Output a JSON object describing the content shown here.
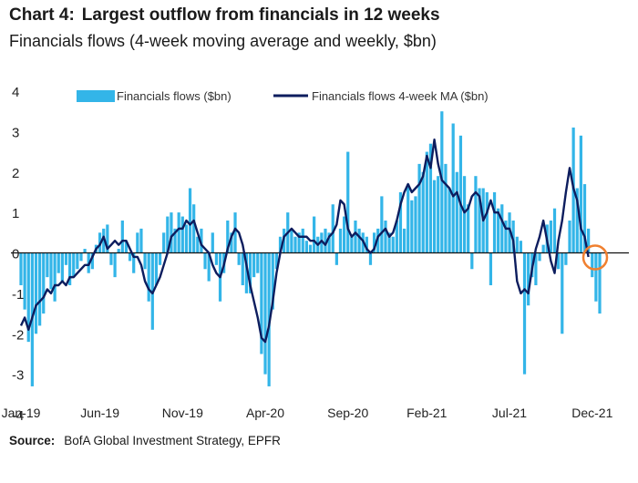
{
  "header": {
    "chart_number": "Chart 4:",
    "title": "Largest outflow from financials in 12 weeks",
    "subtitle": "Financials flows (4-week moving average and weekly, $bn)"
  },
  "source": {
    "label": "Source:",
    "text": "BofA Global Investment Strategy, EPFR"
  },
  "colors": {
    "bars": "#33b5e8",
    "line": "#0d1d5e",
    "highlight": "#f08030"
  },
  "chart_data": {
    "type": "bar",
    "combined_with": "line",
    "title": "Financials flows (4-week moving average and weekly, $bn)",
    "ylim": [
      -4,
      4
    ],
    "yticks": [
      -4,
      -3,
      -2,
      -1,
      0,
      1,
      2,
      3,
      4
    ],
    "ytick_labels": [
      "-4",
      "-3",
      "-2",
      "-1",
      "0",
      "1",
      "2",
      "3",
      "4"
    ],
    "xticks": [
      "Jan-19",
      "Jun-19",
      "Nov-19",
      "Apr-20",
      "Sep-20",
      "Feb-21",
      "Jul-21",
      "Dec-21"
    ],
    "xtick_week_index": [
      0,
      21,
      43,
      65,
      87,
      108,
      130,
      152
    ],
    "grid": false,
    "legend_position": "top",
    "series": [
      {
        "name": "Financials flows ($bn)",
        "kind": "bar",
        "values": [
          -0.8,
          -1.4,
          -2.2,
          -3.3,
          -2.0,
          -1.8,
          -1.5,
          -0.6,
          -0.9,
          -1.2,
          -0.5,
          -0.7,
          -0.3,
          -0.8,
          -0.6,
          -0.4,
          -0.2,
          0.1,
          -0.5,
          -0.4,
          0.2,
          0.5,
          0.6,
          0.7,
          -0.3,
          -0.6,
          0.1,
          0.8,
          0.3,
          -0.2,
          -0.5,
          0.5,
          0.6,
          -0.4,
          -1.2,
          -1.9,
          -0.8,
          -0.3,
          0.5,
          0.9,
          1.0,
          0.6,
          1.0,
          0.9,
          0.7,
          1.6,
          1.2,
          0.4,
          0.6,
          -0.4,
          -0.7,
          0.5,
          -0.3,
          -1.2,
          -0.5,
          0.8,
          0.5,
          1.0,
          -0.3,
          -0.8,
          -1.0,
          -1.0,
          -0.6,
          -0.5,
          -2.5,
          -3.0,
          -3.3,
          -1.4,
          -0.4,
          0.4,
          0.6,
          1.0,
          0.6,
          0.4,
          0.5,
          0.6,
          0.3,
          0.2,
          0.9,
          0.4,
          0.5,
          0.6,
          0.5,
          1.2,
          -0.3,
          0.6,
          0.9,
          2.5,
          0.4,
          0.8,
          0.6,
          0.5,
          0.4,
          -0.3,
          0.5,
          0.6,
          1.4,
          0.8,
          0.5,
          0.4,
          0.8,
          1.5,
          0.6,
          1.7,
          1.3,
          1.4,
          2.2,
          2.0,
          2.5,
          2.7,
          1.8,
          1.9,
          3.5,
          2.2,
          1.6,
          3.2,
          2.0,
          2.9,
          1.9,
          1.2,
          -0.4,
          1.9,
          1.6,
          1.6,
          1.5,
          -0.8,
          1.5,
          1.1,
          1.2,
          0.8,
          1.0,
          0.8,
          0.4,
          0.3,
          -3.0,
          -1.3,
          -0.6,
          -0.8,
          -0.2,
          0.2,
          0.7,
          0.8,
          1.1,
          -0.4,
          -2.0,
          -0.3,
          0.8,
          3.1,
          1.6,
          2.9,
          1.7,
          0.6,
          -0.6,
          -1.2,
          -1.5
        ],
        "color": "#33b5e8"
      },
      {
        "name": "Financials flows 4-week MA ($bn)",
        "kind": "line",
        "values": [
          -1.8,
          -1.6,
          -1.9,
          -1.6,
          -1.3,
          -1.2,
          -1.1,
          -0.9,
          -1.0,
          -0.8,
          -0.8,
          -0.7,
          -0.8,
          -0.6,
          -0.6,
          -0.5,
          -0.4,
          -0.3,
          -0.3,
          -0.1,
          0.1,
          0.2,
          0.4,
          0.1,
          0.2,
          0.3,
          0.2,
          0.3,
          0.3,
          0.1,
          -0.1,
          -0.1,
          -0.3,
          -0.7,
          -0.9,
          -1.0,
          -0.8,
          -0.6,
          -0.3,
          0.0,
          0.4,
          0.5,
          0.6,
          0.6,
          0.8,
          0.7,
          0.8,
          0.5,
          0.2,
          0.1,
          0.0,
          -0.3,
          -0.5,
          -0.6,
          -0.3,
          0.1,
          0.4,
          0.6,
          0.5,
          0.2,
          -0.3,
          -0.8,
          -1.2,
          -1.6,
          -2.1,
          -2.2,
          -1.8,
          -1.2,
          -0.5,
          0.0,
          0.4,
          0.5,
          0.6,
          0.5,
          0.4,
          0.4,
          0.4,
          0.3,
          0.3,
          0.2,
          0.3,
          0.2,
          0.4,
          0.5,
          0.7,
          1.3,
          1.2,
          0.6,
          0.4,
          0.5,
          0.4,
          0.3,
          0.1,
          0.0,
          0.1,
          0.4,
          0.5,
          0.6,
          0.4,
          0.5,
          0.8,
          1.2,
          1.5,
          1.7,
          1.5,
          1.6,
          1.7,
          1.9,
          2.4,
          2.1,
          2.8,
          2.2,
          1.8,
          1.7,
          1.6,
          1.4,
          1.5,
          1.2,
          1.0,
          1.1,
          1.4,
          1.5,
          1.4,
          0.8,
          1.0,
          1.3,
          1.0,
          1.0,
          0.8,
          0.6,
          0.6,
          0.3,
          -0.7,
          -1.0,
          -0.9,
          -1.0,
          -0.4,
          0.1,
          0.4,
          0.8,
          0.3,
          -0.2,
          -0.5,
          0.3,
          0.8,
          1.5,
          2.1,
          1.6,
          1.3,
          0.6,
          0.4,
          -0.1
        ],
        "color": "#0d1d5e"
      }
    ],
    "annotation": "orange circle highlighting the latest week (Dec-21)"
  }
}
